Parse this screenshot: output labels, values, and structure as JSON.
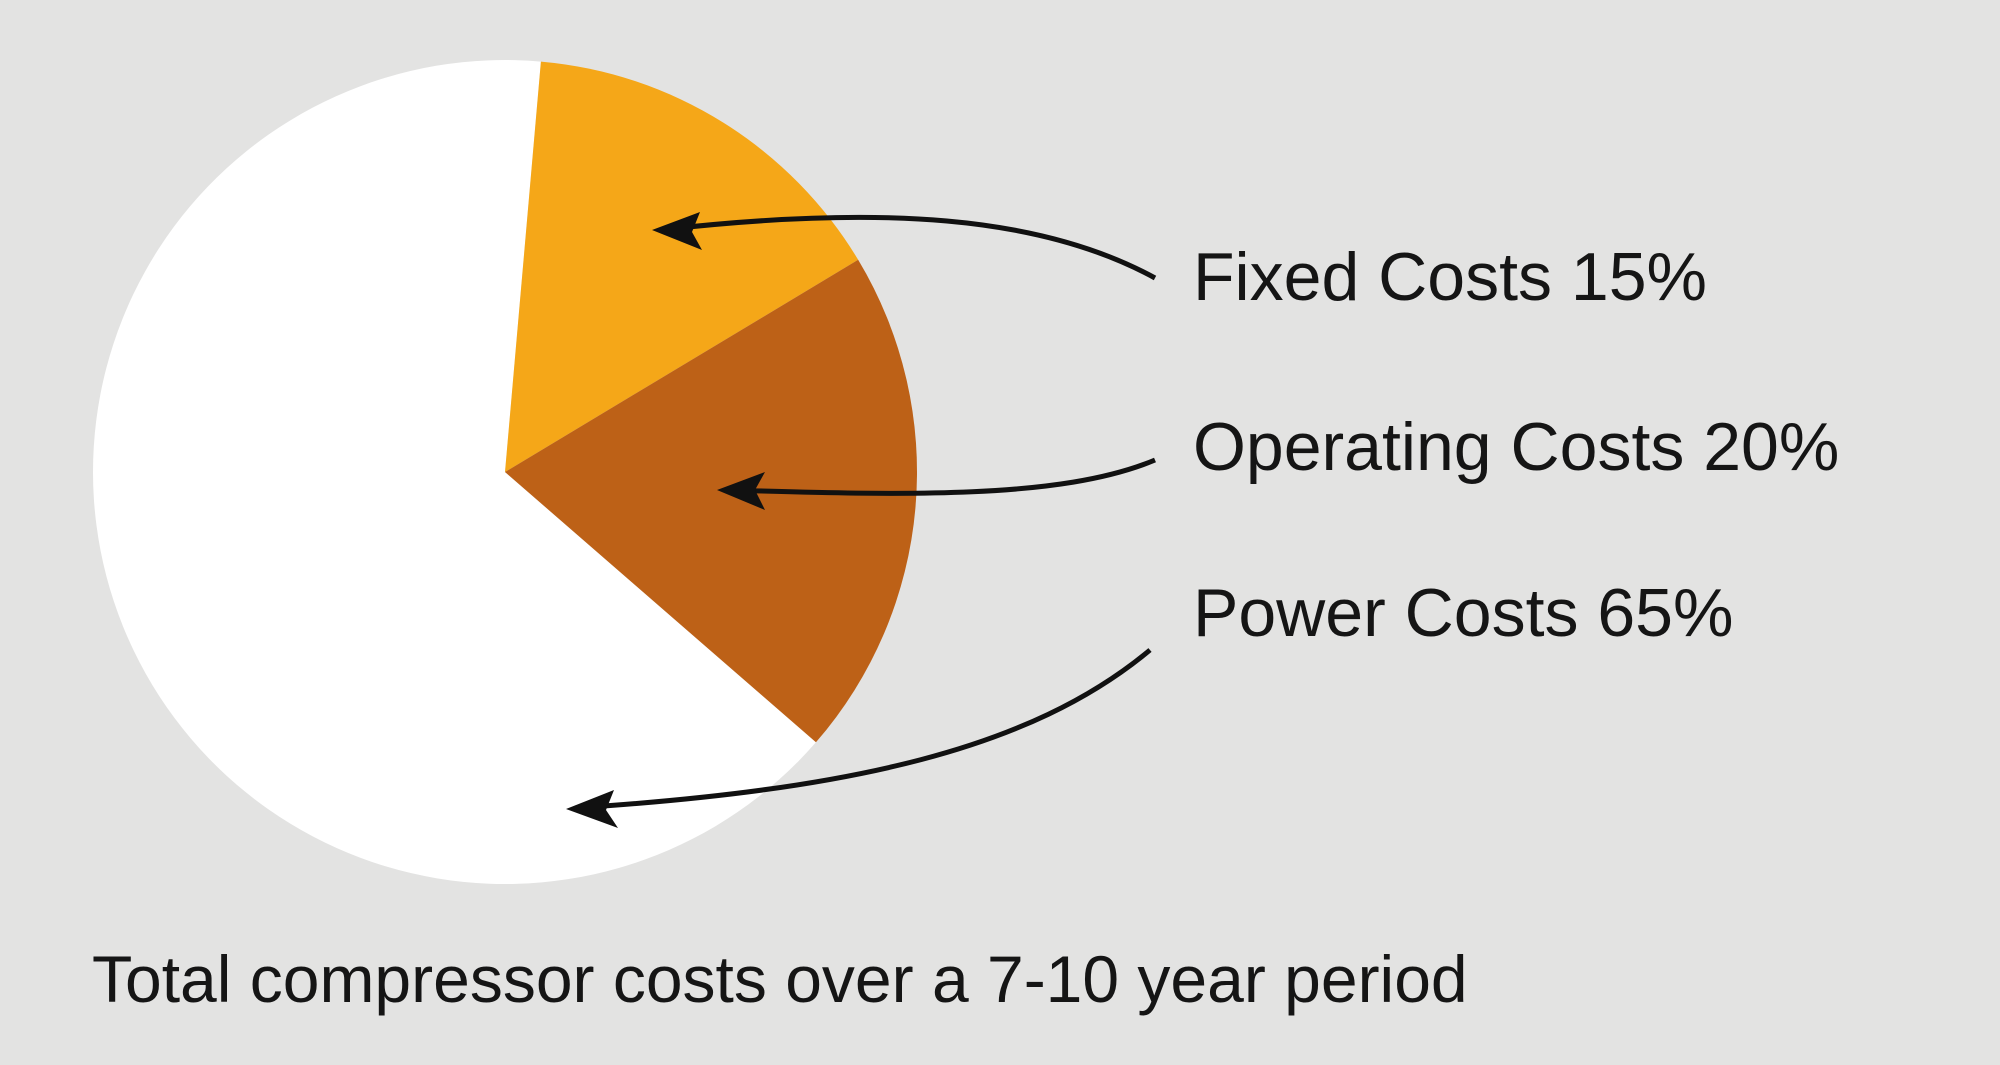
{
  "chart_data": {
    "type": "pie",
    "title": "Total compressor costs over a 7-10 year period",
    "slices": [
      {
        "label": "Fixed Costs 15%",
        "value": 15,
        "color": "#f5a718"
      },
      {
        "label": "Operating Costs 20%",
        "value": 20,
        "color": "#bd6117"
      },
      {
        "label": "Power Costs 65%",
        "value": 65,
        "color": "#ffffff"
      }
    ],
    "legend_placement": "right",
    "annotations": "curved arrows from labels to slices"
  },
  "colors": {
    "background": "#e3e3e2",
    "text": "#151515"
  }
}
